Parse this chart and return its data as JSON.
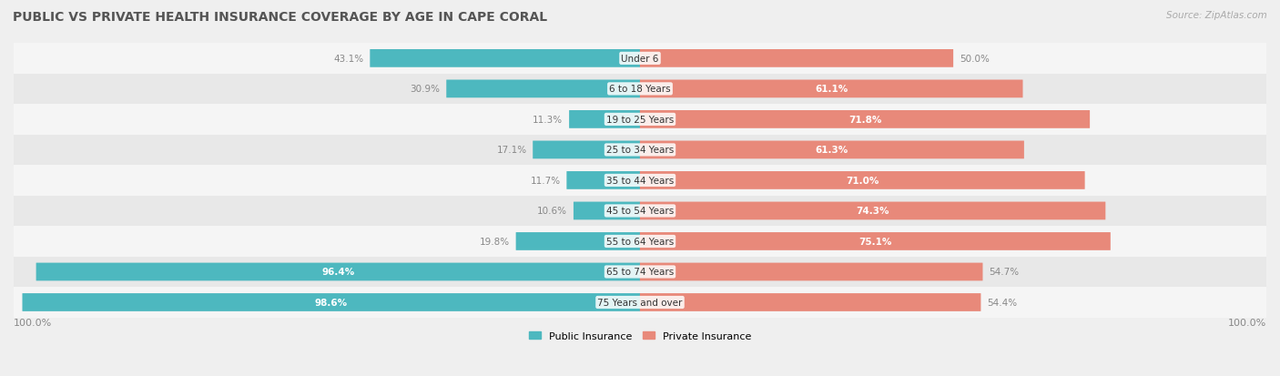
{
  "title": "PUBLIC VS PRIVATE HEALTH INSURANCE COVERAGE BY AGE IN CAPE CORAL",
  "source": "Source: ZipAtlas.com",
  "categories": [
    "Under 6",
    "6 to 18 Years",
    "19 to 25 Years",
    "25 to 34 Years",
    "35 to 44 Years",
    "45 to 54 Years",
    "55 to 64 Years",
    "65 to 74 Years",
    "75 Years and over"
  ],
  "public_values": [
    43.1,
    30.9,
    11.3,
    17.1,
    11.7,
    10.6,
    19.8,
    96.4,
    98.6
  ],
  "private_values": [
    50.0,
    61.1,
    71.8,
    61.3,
    71.0,
    74.3,
    75.1,
    54.7,
    54.4
  ],
  "public_color": "#4db8bf",
  "private_color": "#e8897a",
  "bg_color": "#efefef",
  "title_color": "#555555",
  "text_color_light": "#ffffff",
  "text_color_dark": "#888888",
  "max_value": 100.0,
  "bar_height": 0.55,
  "row_bg_colors": [
    "#f5f5f5",
    "#e8e8e8"
  ]
}
